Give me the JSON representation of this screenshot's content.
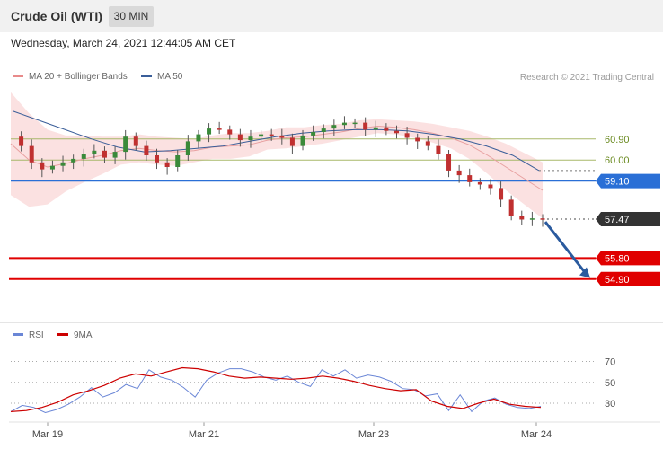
{
  "header": {
    "title": "Crude Oil (WTI)",
    "timeframe": "30 MIN"
  },
  "datetime": "Wednesday, March 24, 2021 12:44:05 AM CET",
  "legend": {
    "bb_label": "MA 20 + Bollinger Bands",
    "ma50_label": "MA 50",
    "copyright": "Research © 2021 Trading Central"
  },
  "rsi_legend": {
    "rsi_label": "RSI",
    "ma_label": "9MA"
  },
  "colors": {
    "bands": "#f8c9c9",
    "ma20": "#e8a0a0",
    "ma50": "#3a5e99",
    "resistance": "#a8b86a",
    "pivot": "#2a6fd6",
    "support": "#e00000",
    "last": "#333333",
    "arrow": "#2a5a9e",
    "rsi": "#6a86d6",
    "rsi_ma": "#cc0000"
  },
  "chart_data": {
    "type": "candlestick",
    "title": "Crude Oil (WTI)",
    "ylim": [
      53.2,
      63.2
    ],
    "x_ticks": [
      "Mar 19",
      "Mar 21",
      "Mar 23",
      "Mar 24"
    ],
    "levels": [
      {
        "value": 60.9,
        "label": "60.90",
        "kind": "resistance"
      },
      {
        "value": 60.0,
        "label": "60.00",
        "kind": "resistance"
      },
      {
        "value": 59.1,
        "label": "59.10",
        "kind": "pivot"
      },
      {
        "value": 57.47,
        "label": "57.47",
        "kind": "last"
      },
      {
        "value": 55.8,
        "label": "55.80",
        "kind": "support"
      },
      {
        "value": 54.9,
        "label": "54.90",
        "kind": "support"
      }
    ],
    "price_series": [
      61.0,
      60.6,
      59.9,
      59.6,
      59.75,
      59.9,
      60.05,
      60.25,
      60.4,
      60.1,
      60.35,
      61.0,
      60.6,
      60.2,
      59.9,
      59.7,
      60.2,
      60.8,
      61.1,
      61.35,
      61.3,
      61.1,
      60.85,
      61.0,
      61.1,
      61.05,
      60.95,
      60.6,
      61.05,
      61.2,
      61.35,
      61.5,
      61.6,
      61.6,
      61.3,
      61.4,
      61.25,
      61.15,
      60.95,
      60.8,
      60.6,
      60.25,
      59.55,
      59.35,
      59.05,
      58.95,
      58.8,
      58.3,
      57.6,
      57.45,
      57.5,
      57.47
    ],
    "ma20_series": [
      60.7,
      60.0,
      59.7,
      59.85,
      60.05,
      60.2,
      60.4,
      60.5,
      60.4,
      60.35,
      60.4,
      60.55,
      60.6,
      60.65,
      60.85,
      60.95,
      61.0,
      61.1,
      61.2,
      61.35,
      61.45,
      61.4,
      61.3,
      61.15,
      60.95,
      60.65,
      60.2,
      59.7,
      59.2,
      58.7
    ],
    "ma50_series": [
      62.1,
      61.7,
      61.3,
      60.9,
      60.55,
      60.35,
      60.4,
      60.5,
      60.6,
      60.8,
      61.0,
      61.15,
      61.25,
      61.3,
      61.3,
      61.25,
      61.1,
      60.9,
      60.6,
      60.2,
      59.55
    ],
    "rsi": {
      "ylim": [
        12,
        85
      ],
      "levels": [
        70,
        50,
        30
      ],
      "level_labels": [
        "70",
        "50",
        "30"
      ],
      "series": [
        22,
        28,
        26,
        21,
        24,
        29,
        36,
        45,
        36,
        40,
        48,
        44,
        62,
        55,
        52,
        45,
        36,
        52,
        59,
        63,
        63,
        60,
        55,
        52,
        56,
        50,
        46,
        62,
        56,
        62,
        54,
        57,
        55,
        51,
        44,
        43,
        37,
        39,
        23,
        38,
        22,
        32,
        35,
        29,
        26,
        25,
        27
      ],
      "ma_series": [
        22,
        23,
        26,
        31,
        38,
        42,
        47,
        54,
        58,
        56,
        60,
        64,
        63,
        60,
        56,
        54,
        55,
        54,
        53,
        54,
        56,
        54,
        51,
        47,
        44,
        42,
        43,
        32,
        27,
        25,
        30,
        34,
        29,
        27,
        26
      ]
    }
  }
}
